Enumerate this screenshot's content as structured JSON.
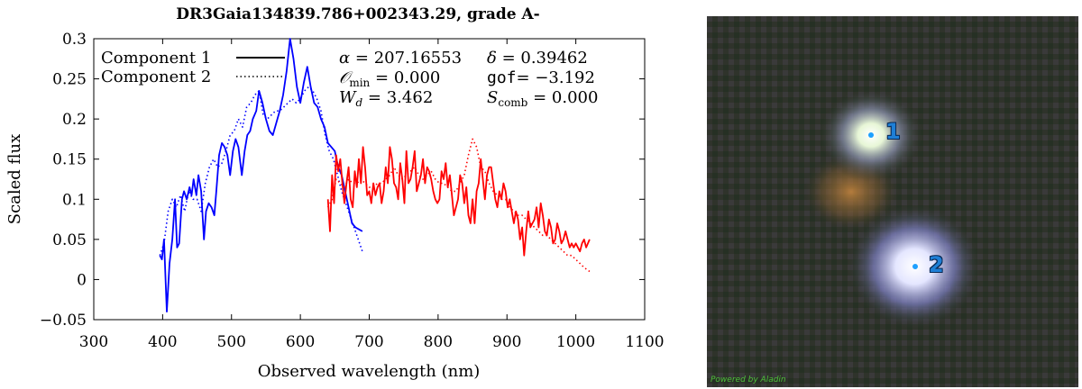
{
  "chart_data": {
    "type": "line",
    "title": "DR3Gaia134839.786+002343.29, grade A-",
    "xlabel": "Observed wavelength (nm)",
    "ylabel": "Scaled flux",
    "xlim": [
      300,
      1100
    ],
    "ylim": [
      -0.05,
      0.3
    ],
    "xticks": [
      "300",
      "400",
      "500",
      "600",
      "700",
      "800",
      "900",
      "1000",
      "1100"
    ],
    "yticks": [
      "−0.05",
      "0",
      "0.05",
      "0.1",
      "0.15",
      "0.2",
      "0.25",
      "0.3"
    ],
    "legend_position": "top-left",
    "legend": [
      "Component 1",
      "Component 2"
    ],
    "annotations": {
      "alpha": "207.16553",
      "delta": "0.39462",
      "omin": "0.000",
      "gof": "−3.192",
      "wd": "3.462",
      "scomb": "0.000"
    },
    "series": [
      {
        "name": "Component 1",
        "instrument": "blue",
        "style": "solid",
        "color": "#0000ff",
        "x": [
          396,
          399,
          402,
          406,
          410,
          414,
          418,
          421,
          424,
          428,
          431,
          435,
          439,
          442,
          445,
          449,
          452,
          456,
          460,
          463,
          467,
          471,
          475,
          478,
          482,
          486,
          490,
          494,
          498,
          502,
          506,
          510,
          515,
          519,
          523,
          527,
          531,
          536,
          540,
          545,
          550,
          555,
          560,
          565,
          570,
          575,
          580,
          585,
          590,
          595,
          600,
          605,
          610,
          615,
          620,
          625,
          630,
          635,
          640,
          645,
          650,
          655,
          660,
          665,
          670,
          675,
          680,
          690
        ],
        "y": [
          0.03,
          0.025,
          0.05,
          -0.04,
          0.02,
          0.05,
          0.1,
          0.04,
          0.045,
          0.1,
          0.11,
          0.1,
          0.115,
          0.105,
          0.125,
          0.105,
          0.13,
          0.11,
          0.05,
          0.085,
          0.095,
          0.09,
          0.08,
          0.11,
          0.155,
          0.17,
          0.165,
          0.155,
          0.13,
          0.16,
          0.175,
          0.165,
          0.13,
          0.16,
          0.18,
          0.185,
          0.2,
          0.21,
          0.235,
          0.22,
          0.2,
          0.185,
          0.18,
          0.195,
          0.21,
          0.23,
          0.26,
          0.3,
          0.275,
          0.24,
          0.22,
          0.245,
          0.265,
          0.24,
          0.22,
          0.215,
          0.2,
          0.19,
          0.17,
          0.165,
          0.16,
          0.14,
          0.13,
          0.11,
          0.09,
          0.07,
          0.065,
          0.06
        ]
      },
      {
        "name": "Component 2",
        "instrument": "blue",
        "style": "dotted",
        "color": "#0000ff",
        "x": [
          396,
          402,
          408,
          414,
          420,
          426,
          432,
          438,
          444,
          450,
          456,
          462,
          468,
          474,
          480,
          486,
          492,
          498,
          504,
          510,
          516,
          522,
          528,
          534,
          540,
          546,
          552,
          558,
          564,
          570,
          576,
          582,
          588,
          594,
          600,
          606,
          612,
          618,
          624,
          630,
          636,
          642,
          648,
          654,
          660,
          666,
          672,
          678,
          684,
          690
        ],
        "y": [
          0.03,
          0.045,
          0.085,
          0.1,
          0.09,
          0.105,
          0.085,
          0.11,
          0.1,
          0.1,
          0.085,
          0.12,
          0.14,
          0.15,
          0.14,
          0.145,
          0.16,
          0.18,
          0.185,
          0.2,
          0.19,
          0.215,
          0.22,
          0.23,
          0.235,
          0.205,
          0.2,
          0.205,
          0.21,
          0.21,
          0.215,
          0.22,
          0.225,
          0.22,
          0.225,
          0.235,
          0.24,
          0.235,
          0.225,
          0.21,
          0.18,
          0.16,
          0.15,
          0.13,
          0.11,
          0.095,
          0.08,
          0.065,
          0.05,
          0.035
        ]
      },
      {
        "name": "Component 1",
        "instrument": "red",
        "style": "solid",
        "color": "#ff0000",
        "x": [
          640,
          643,
          646,
          649,
          652,
          655,
          658,
          661,
          664,
          667,
          670,
          673,
          676,
          679,
          682,
          685,
          688,
          691,
          694,
          697,
          700,
          703,
          706,
          709,
          712,
          715,
          718,
          721,
          724,
          727,
          730,
          733,
          736,
          739,
          742,
          745,
          748,
          751,
          754,
          757,
          760,
          763,
          766,
          769,
          772,
          775,
          778,
          781,
          784,
          787,
          790,
          793,
          796,
          799,
          802,
          805,
          808,
          811,
          814,
          817,
          820,
          823,
          826,
          829,
          832,
          835,
          838,
          841,
          844,
          847,
          850,
          853,
          856,
          859,
          862,
          865,
          868,
          871,
          874,
          877,
          880,
          883,
          886,
          889,
          892,
          895,
          898,
          901,
          904,
          907,
          910,
          913,
          916,
          919,
          922,
          925,
          928,
          931,
          934,
          937,
          940,
          943,
          946,
          949,
          952,
          955,
          958,
          961,
          964,
          967,
          970,
          973,
          976,
          979,
          982,
          985,
          988,
          991,
          994,
          997,
          1000,
          1003,
          1006,
          1009,
          1012,
          1015,
          1020
        ],
        "y": [
          0.1,
          0.06,
          0.13,
          0.095,
          0.155,
          0.135,
          0.15,
          0.12,
          0.095,
          0.12,
          0.14,
          0.1,
          0.09,
          0.135,
          0.115,
          0.15,
          0.12,
          0.165,
          0.14,
          0.105,
          0.11,
          0.095,
          0.12,
          0.105,
          0.115,
          0.12,
          0.095,
          0.11,
          0.14,
          0.12,
          0.165,
          0.15,
          0.12,
          0.115,
          0.1,
          0.145,
          0.125,
          0.095,
          0.16,
          0.12,
          0.125,
          0.14,
          0.16,
          0.11,
          0.12,
          0.13,
          0.15,
          0.12,
          0.14,
          0.135,
          0.125,
          0.11,
          0.1,
          0.095,
          0.1,
          0.135,
          0.125,
          0.145,
          0.115,
          0.13,
          0.105,
          0.08,
          0.09,
          0.1,
          0.13,
          0.12,
          0.095,
          0.115,
          0.08,
          0.07,
          0.1,
          0.07,
          0.11,
          0.12,
          0.15,
          0.125,
          0.1,
          0.13,
          0.14,
          0.14,
          0.12,
          0.1,
          0.09,
          0.11,
          0.1,
          0.12,
          0.11,
          0.09,
          0.1,
          0.085,
          0.07,
          0.085,
          0.075,
          0.05,
          0.065,
          0.03,
          0.06,
          0.085,
          0.065,
          0.07,
          0.075,
          0.09,
          0.065,
          0.095,
          0.08,
          0.06,
          0.055,
          0.075,
          0.065,
          0.045,
          0.05,
          0.07,
          0.06,
          0.045,
          0.05,
          0.06,
          0.05,
          0.04,
          0.045,
          0.04,
          0.045,
          0.04,
          0.035,
          0.045,
          0.05,
          0.04,
          0.05
        ]
      },
      {
        "name": "Component 2",
        "instrument": "red",
        "style": "dotted",
        "color": "#ff0000",
        "x": [
          640,
          646,
          652,
          658,
          664,
          670,
          676,
          682,
          688,
          694,
          700,
          706,
          712,
          718,
          724,
          730,
          736,
          742,
          748,
          754,
          760,
          766,
          772,
          778,
          784,
          790,
          796,
          802,
          808,
          814,
          820,
          826,
          832,
          838,
          844,
          850,
          856,
          862,
          868,
          874,
          880,
          886,
          892,
          898,
          904,
          910,
          916,
          922,
          928,
          934,
          940,
          946,
          952,
          958,
          964,
          970,
          976,
          982,
          988,
          994,
          1000,
          1006,
          1012,
          1020
        ],
        "y": [
          0.09,
          0.1,
          0.125,
          0.12,
          0.115,
          0.125,
          0.12,
          0.12,
          0.125,
          0.12,
          0.115,
          0.115,
          0.12,
          0.12,
          0.125,
          0.13,
          0.14,
          0.13,
          0.125,
          0.13,
          0.135,
          0.14,
          0.13,
          0.125,
          0.13,
          0.135,
          0.125,
          0.12,
          0.12,
          0.115,
          0.11,
          0.11,
          0.12,
          0.13,
          0.155,
          0.175,
          0.165,
          0.14,
          0.135,
          0.12,
          0.11,
          0.105,
          0.1,
          0.1,
          0.09,
          0.085,
          0.08,
          0.08,
          0.075,
          0.07,
          0.065,
          0.06,
          0.055,
          0.055,
          0.05,
          0.045,
          0.04,
          0.035,
          0.03,
          0.03,
          0.025,
          0.02,
          0.015,
          0.01
        ]
      }
    ]
  },
  "sky_image": {
    "credit": "Powered by Aladin",
    "sources": [
      {
        "label": "1"
      },
      {
        "label": "2"
      }
    ]
  }
}
